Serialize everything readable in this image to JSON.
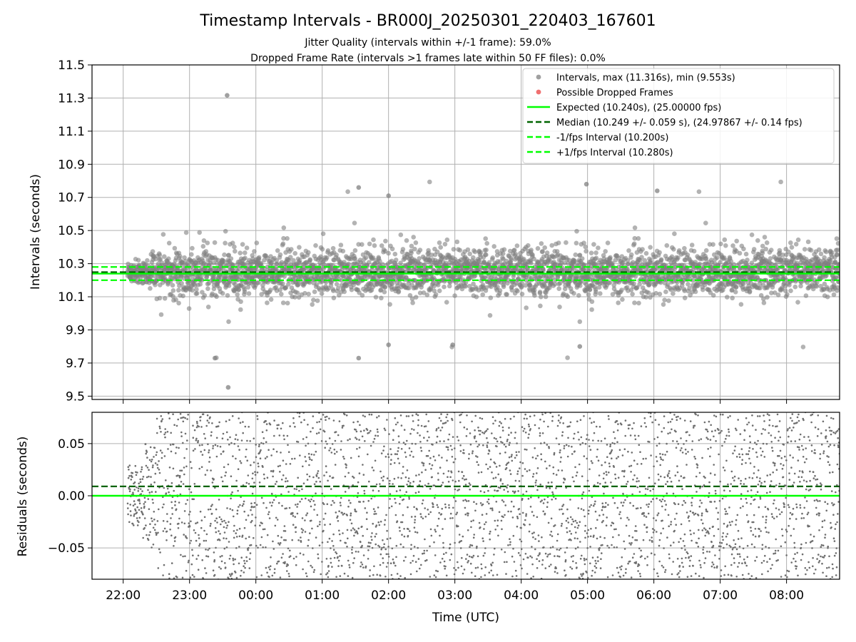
{
  "title": "Timestamp Intervals - BR000J_20250301_220403_167601",
  "subtitle_1": "Jitter Quality (intervals within +/-1 frame): 59.0%",
  "subtitle_2": "Dropped Frame Rate (intervals >1 frames late within 50 FF files): 0.0%",
  "colors": {
    "points": "#808080",
    "dropped": "#ff0000",
    "expected": "#00ff00",
    "median": "#006400",
    "fps_band": "#00ff00",
    "grid": "#b0b0b0"
  },
  "chart_data": [
    {
      "id": "intervals",
      "type": "scatter",
      "ylabel": "Intervals (seconds)",
      "ylim": [
        9.48,
        11.5
      ],
      "yticks": [
        9.5,
        9.7,
        9.9,
        10.1,
        10.3,
        10.5,
        10.7,
        10.9,
        11.1,
        11.3,
        11.5
      ],
      "ytick_labels": [
        "9.5",
        "9.7",
        "9.9",
        "10.1",
        "10.3",
        "10.5",
        "10.7",
        "10.9",
        "11.1",
        "11.3",
        "11.5"
      ],
      "x_start": "2025-03-01T22:04:03Z",
      "x_end": "2025-03-02T08:48:00Z",
      "xlim_hours": [
        21.53,
        32.8
      ],
      "grid": true,
      "legend_position": "top-right",
      "hlines": {
        "expected": 10.24,
        "median": 10.249,
        "minus_1_fps": 10.2,
        "plus_1_fps": 10.28
      },
      "notable_points": [
        {
          "time": "23:34",
          "value": 11.316
        },
        {
          "time": "23:35",
          "value": 9.553
        },
        {
          "time": "23:23",
          "value": 9.73
        },
        {
          "time": "01:33",
          "value": 9.73
        },
        {
          "time": "02:00",
          "value": 9.81
        },
        {
          "time": "02:58",
          "value": 9.81
        },
        {
          "time": "04:53",
          "value": 9.8
        },
        {
          "time": "04:59",
          "value": 10.78
        },
        {
          "time": "01:33",
          "value": 10.76
        },
        {
          "time": "06:03",
          "value": 10.74
        },
        {
          "time": "02:00",
          "value": 10.71
        }
      ],
      "legend": [
        {
          "label": "Intervals, max (11.316s), min (9.553s)",
          "marker": "dot",
          "color": "#a0a0a0"
        },
        {
          "label": "Possible Dropped Frames",
          "marker": "dot",
          "color": "#f07070"
        },
        {
          "label": "Expected (10.240s), (25.00000 fps)",
          "marker": "solid",
          "color": "#00ff00"
        },
        {
          "label": "Median (10.249 +/- 0.059 s), (24.97867 +/- 0.14 fps)",
          "marker": "dashed",
          "color": "#006400"
        },
        {
          "label": "-1/fps Interval (10.200s)",
          "marker": "dashed",
          "color": "#00ff00"
        },
        {
          "label": "+1/fps Interval (10.280s)",
          "marker": "dashed",
          "color": "#00ff00"
        }
      ]
    },
    {
      "id": "residuals",
      "type": "scatter",
      "ylabel": "Residuals (seconds)",
      "xlabel": "Time (UTC)",
      "ylim": [
        -0.08,
        0.08
      ],
      "yticks": [
        -0.05,
        0.0,
        0.05
      ],
      "ytick_labels": [
        "−0.05",
        "0.00",
        "0.05"
      ],
      "xlim_hours": [
        21.53,
        32.8
      ],
      "xticks_hours": [
        22,
        23,
        24,
        25,
        26,
        27,
        28,
        29,
        30,
        31,
        32
      ],
      "xtick_labels": [
        "22:00",
        "23:00",
        "00:00",
        "01:00",
        "02:00",
        "03:00",
        "04:00",
        "05:00",
        "06:00",
        "07:00",
        "08:00"
      ],
      "grid": true,
      "hlines": {
        "zero": 0.0,
        "median_offset": 0.009
      }
    }
  ]
}
